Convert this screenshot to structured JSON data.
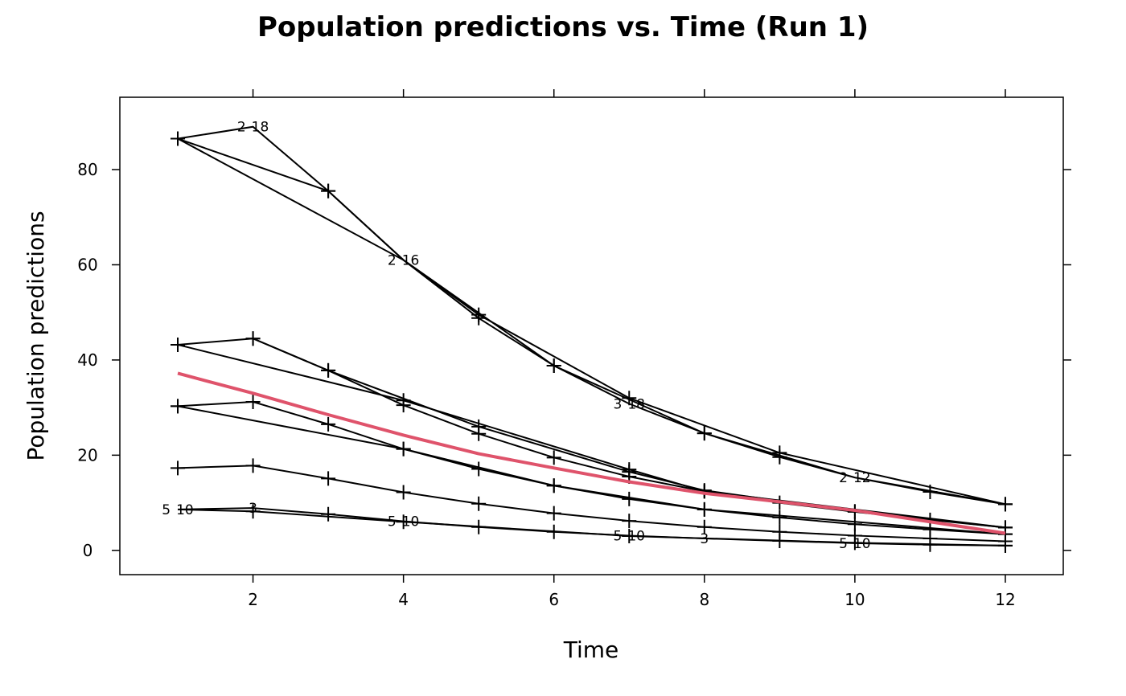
{
  "chart_data": {
    "type": "line",
    "title": "Population predictions vs. Time (Run 1)",
    "xlabel": "Time",
    "ylabel": "Population predictions",
    "xlim": [
      0.23,
      12.77
    ],
    "ylim": [
      -5.1,
      95.2
    ],
    "xticks": [
      2,
      4,
      6,
      8,
      10,
      12
    ],
    "yticks": [
      0,
      20,
      40,
      60,
      80
    ],
    "grid": false,
    "colors": {
      "lines": "#000000",
      "smooth": "#DF536B"
    },
    "series": [
      {
        "points": [
          [
            1,
            86.5
          ],
          [
            2,
            89
          ],
          [
            3,
            75.5
          ],
          [
            4,
            61
          ],
          [
            5,
            48.8
          ],
          [
            6,
            38.8
          ],
          [
            7,
            30.8
          ],
          [
            8,
            24.6
          ],
          [
            9,
            19.6
          ],
          [
            10,
            15.3
          ],
          [
            11,
            12.3
          ],
          [
            12,
            9.7
          ]
        ]
      },
      {
        "points": [
          [
            1,
            86.5
          ],
          [
            3,
            75.5
          ],
          [
            4,
            61
          ],
          [
            5,
            49.5
          ],
          [
            7,
            32
          ],
          [
            9,
            20.5
          ],
          [
            12,
            9.7
          ]
        ]
      },
      {
        "points": [
          [
            1,
            86.5
          ],
          [
            4,
            61
          ],
          [
            6,
            38.8
          ],
          [
            8,
            24.6
          ],
          [
            10,
            15.3
          ],
          [
            12,
            9.7
          ]
        ]
      },
      {
        "points": [
          [
            1,
            43.2
          ],
          [
            2,
            44.5
          ],
          [
            3,
            37.8
          ],
          [
            4,
            30.5
          ],
          [
            5,
            24.5
          ],
          [
            6,
            19.5
          ],
          [
            7,
            15.5
          ],
          [
            8,
            12.4
          ],
          [
            9,
            10
          ],
          [
            10,
            8.1
          ],
          [
            11,
            6.4
          ],
          [
            12,
            4.8
          ]
        ]
      },
      {
        "points": [
          [
            1,
            43.2
          ],
          [
            4,
            31.5
          ],
          [
            7,
            17
          ],
          [
            8,
            12.4
          ],
          [
            12,
            4.8
          ]
        ]
      },
      {
        "points": [
          [
            2,
            44.5
          ],
          [
            3,
            37.8
          ],
          [
            5,
            26
          ],
          [
            7,
            16.5
          ],
          [
            8,
            12.6
          ],
          [
            10,
            8.2
          ],
          [
            12,
            4.8
          ]
        ]
      },
      {
        "points": [
          [
            1,
            30.3
          ],
          [
            2,
            31.2
          ],
          [
            3,
            26.5
          ],
          [
            4,
            21.3
          ],
          [
            5,
            17.1
          ],
          [
            6,
            13.6
          ],
          [
            7,
            10.8
          ],
          [
            8,
            8.6
          ],
          [
            9,
            6.9
          ],
          [
            10,
            5.5
          ],
          [
            11,
            4.4
          ],
          [
            12,
            3.4
          ]
        ]
      },
      {
        "points": [
          [
            1,
            30.3
          ],
          [
            4,
            21.3
          ],
          [
            6,
            13.6
          ],
          [
            8,
            8.6
          ],
          [
            12,
            3.4
          ]
        ]
      },
      {
        "points": [
          [
            1,
            17.3
          ],
          [
            2,
            17.8
          ],
          [
            3,
            15.1
          ],
          [
            4,
            12.2
          ],
          [
            5,
            9.8
          ],
          [
            6,
            7.8
          ],
          [
            7,
            6.2
          ],
          [
            8,
            4.9
          ],
          [
            9,
            3.9
          ],
          [
            10,
            3.1
          ],
          [
            11,
            2.5
          ],
          [
            12,
            1.9
          ]
        ]
      },
      {
        "points": [
          [
            1,
            8.6
          ],
          [
            2,
            8.9
          ],
          [
            3,
            7.6
          ],
          [
            4,
            6.1
          ],
          [
            5,
            4.9
          ],
          [
            6,
            3.9
          ],
          [
            7,
            3.1
          ],
          [
            8,
            2.5
          ],
          [
            9,
            2
          ],
          [
            10,
            1.5
          ],
          [
            11,
            1.2
          ],
          [
            12,
            1
          ]
        ]
      },
      {
        "points": [
          [
            1,
            8.6
          ],
          [
            2,
            8.2
          ],
          [
            4,
            6
          ],
          [
            7,
            3
          ],
          [
            10,
            1.6
          ],
          [
            12,
            1
          ]
        ]
      }
    ],
    "smooth": {
      "points": [
        [
          1,
          37.2
        ],
        [
          2,
          33
        ],
        [
          3,
          28.5
        ],
        [
          4,
          24.2
        ],
        [
          5,
          20.3
        ],
        [
          6,
          17.3
        ],
        [
          7,
          14.4
        ],
        [
          8,
          12
        ],
        [
          9,
          10.2
        ],
        [
          10,
          8.4
        ],
        [
          11,
          6
        ],
        [
          12,
          3.6
        ]
      ]
    },
    "point_labels": [
      {
        "x": 2,
        "y": 89,
        "text": "2"
      },
      {
        "x": 2,
        "y": 89,
        "text": "18"
      },
      {
        "x": 4,
        "y": 61,
        "text": "2"
      },
      {
        "x": 4,
        "y": 61,
        "text": "16"
      },
      {
        "x": 7,
        "y": 30.8,
        "text": "3"
      },
      {
        "x": 7,
        "y": 30.8,
        "text": "18"
      },
      {
        "x": 10,
        "y": 15.3,
        "text": "2"
      },
      {
        "x": 10,
        "y": 15.3,
        "text": "12"
      },
      {
        "x": 1,
        "y": 8.6,
        "text": "5"
      },
      {
        "x": 1,
        "y": 8.6,
        "text": "10"
      },
      {
        "x": 2,
        "y": 8.9,
        "text": "3"
      },
      {
        "x": 4,
        "y": 6.1,
        "text": "5"
      },
      {
        "x": 4,
        "y": 6.1,
        "text": "10"
      },
      {
        "x": 7,
        "y": 3.1,
        "text": "5"
      },
      {
        "x": 7,
        "y": 3.1,
        "text": "10"
      },
      {
        "x": 8,
        "y": 2.5,
        "text": "3"
      },
      {
        "x": 10,
        "y": 1.5,
        "text": "5"
      },
      {
        "x": 10,
        "y": 1.5,
        "text": "10"
      }
    ]
  }
}
